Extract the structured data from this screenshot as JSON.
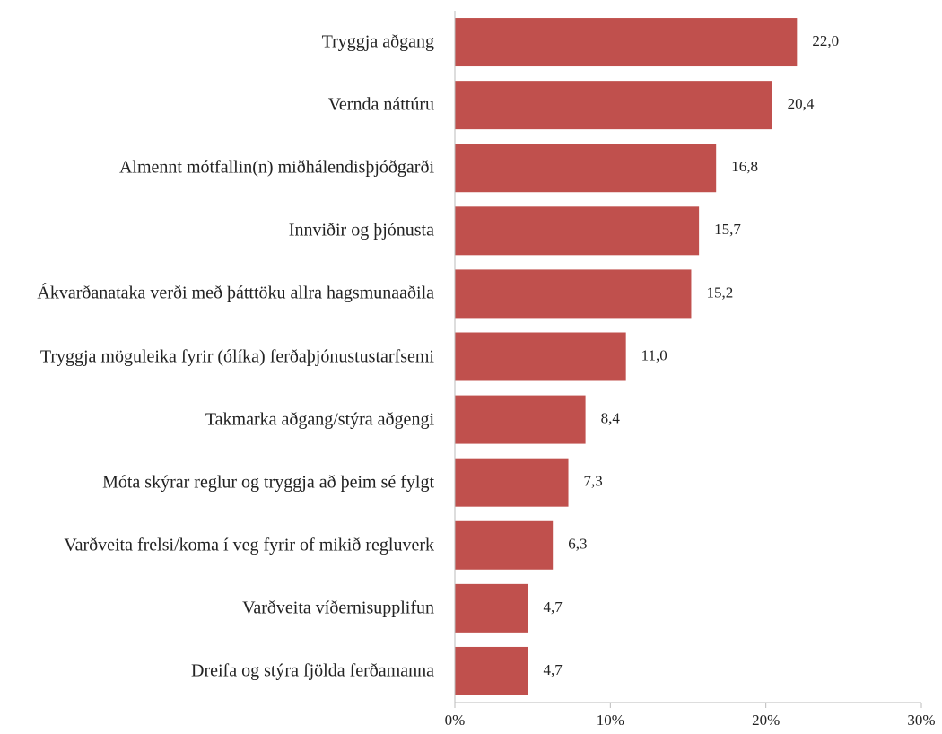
{
  "chart_data": {
    "type": "hbar",
    "categories": [
      "Tryggja aðgang",
      "Vernda náttúru",
      "Almennt mótfallin(n) miðhálendisþjóðgarði",
      "Innviðir og þjónusta",
      "Ákvarðanataka verði með þátttöku allra hagsmunaaðila",
      "Tryggja möguleika fyrir (ólíka) ferðaþjónustustarfsemi",
      "Takmarka aðgang/stýra aðgengi",
      "Móta skýrar reglur og tryggja að þeim sé fylgt",
      "Varðveita frelsi/koma í veg fyrir of mikið regluverk",
      "Varðveita víðernisupplifun",
      "Dreifa og stýra fjölda ferðamanna"
    ],
    "values": [
      22.0,
      20.4,
      16.8,
      15.7,
      15.2,
      11.0,
      8.4,
      7.3,
      6.3,
      4.7,
      4.7
    ],
    "value_labels": [
      "22,0",
      "20,4",
      "16,8",
      "15,7",
      "15,2",
      "11,0",
      "8,4",
      "7,3",
      "6,3",
      "4,7",
      "4,7"
    ],
    "color": "#c0504d",
    "xlim": [
      0,
      30
    ],
    "xticks": [
      {
        "value": 0,
        "label": "0%"
      },
      {
        "value": 10,
        "label": "10%"
      },
      {
        "value": 20,
        "label": "20%"
      },
      {
        "value": 30,
        "label": "30%"
      }
    ]
  }
}
